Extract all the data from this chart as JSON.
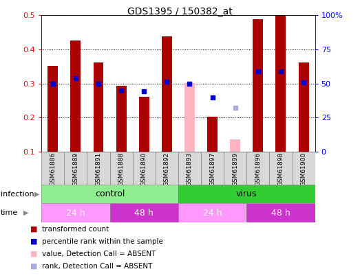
{
  "title": "GDS1395 / 150382_at",
  "samples": [
    "GSM61886",
    "GSM61889",
    "GSM61891",
    "GSM61888",
    "GSM61890",
    "GSM61892",
    "GSM61893",
    "GSM61897",
    "GSM61899",
    "GSM61896",
    "GSM61898",
    "GSM61900"
  ],
  "bar_values": [
    0.352,
    0.425,
    0.362,
    0.293,
    0.26,
    0.438,
    0.302,
    0.202,
    0.135,
    0.488,
    0.5,
    0.362
  ],
  "bar_absent": [
    false,
    false,
    false,
    false,
    false,
    false,
    true,
    false,
    true,
    false,
    false,
    false
  ],
  "rank_values": [
    0.3,
    0.315,
    0.3,
    0.278,
    0.277,
    0.305,
    0.3,
    0.258,
    0.228,
    0.336,
    0.335,
    0.304
  ],
  "rank_absent": [
    false,
    false,
    false,
    false,
    false,
    false,
    false,
    false,
    true,
    false,
    false,
    false
  ],
  "ylim": [
    0.1,
    0.5
  ],
  "y2lim": [
    0,
    100
  ],
  "yticks": [
    0.1,
    0.2,
    0.3,
    0.4,
    0.5
  ],
  "y2ticks": [
    0,
    25,
    50,
    75,
    100
  ],
  "y2tick_labels": [
    "0",
    "25",
    "50",
    "75",
    "100%"
  ],
  "infection_groups": [
    {
      "label": "control",
      "start": 0,
      "end": 6,
      "color": "#90EE90"
    },
    {
      "label": "virus",
      "start": 6,
      "end": 12,
      "color": "#33CC33"
    }
  ],
  "time_groups": [
    {
      "label": "24 h",
      "start": 0,
      "end": 3,
      "color": "#FF99FF"
    },
    {
      "label": "48 h",
      "start": 3,
      "end": 6,
      "color": "#CC33CC"
    },
    {
      "label": "24 h",
      "start": 6,
      "end": 9,
      "color": "#FF99FF"
    },
    {
      "label": "48 h",
      "start": 9,
      "end": 12,
      "color": "#CC33CC"
    }
  ],
  "bar_color": "#AA0000",
  "bar_absent_color": "#FFB6C1",
  "rank_color": "#0000CC",
  "rank_absent_color": "#AAAADD",
  "bar_width": 0.45,
  "rank_marker_size": 5,
  "legend_items": [
    {
      "label": "transformed count",
      "color": "#AA0000"
    },
    {
      "label": "percentile rank within the sample",
      "color": "#0000CC"
    },
    {
      "label": "value, Detection Call = ABSENT",
      "color": "#FFB6C1"
    },
    {
      "label": "rank, Detection Call = ABSENT",
      "color": "#AAAADD"
    }
  ],
  "fig_width": 5.23,
  "fig_height": 4.05,
  "dpi": 100
}
